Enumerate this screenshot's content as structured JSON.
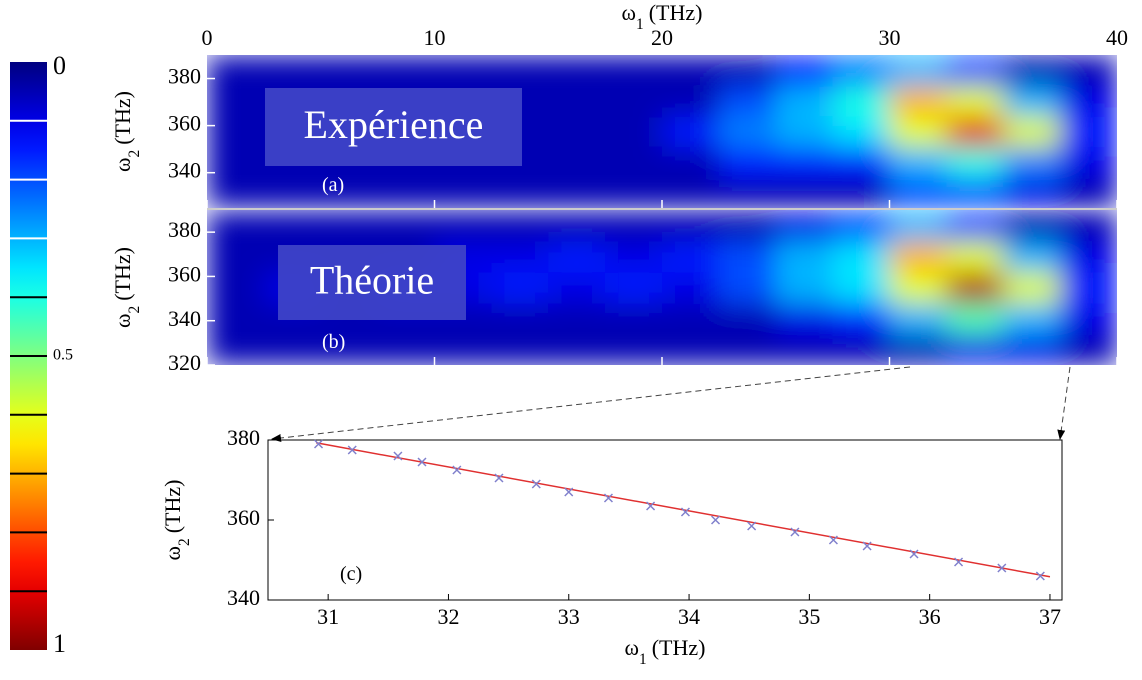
{
  "chart_data": [
    {
      "type": "colorbar",
      "colormap": "jet",
      "ylim": [
        0,
        1
      ],
      "yticks": [
        0,
        0.5,
        1
      ],
      "minor_ticks": [
        0.1,
        0.2,
        0.3,
        0.4,
        0.6,
        0.7,
        0.8,
        0.9
      ]
    },
    {
      "type": "heatmap",
      "colormap": "jet",
      "annotation": "Expérience",
      "panel_label": "(a)",
      "xlabel": {
        "symbol": "ω",
        "subscript": "1",
        "unit": "(THz)"
      },
      "ylabel": {
        "symbol": "ω",
        "subscript": "2",
        "unit": "(THz)"
      },
      "xlim": [
        0,
        40
      ],
      "xticks": [
        0,
        10,
        20,
        30,
        40
      ],
      "ylim": [
        325,
        390
      ],
      "yticks": [
        340,
        360,
        380
      ],
      "x_bins": [
        0,
        2.5,
        5,
        7.5,
        10,
        12.5,
        15,
        17.5,
        20,
        22.5,
        25,
        27.5,
        30,
        32.5,
        35,
        37.5,
        40
      ],
      "y_bins": [
        325,
        338,
        351,
        364,
        377,
        390
      ],
      "z": [
        [
          0.05,
          0.05,
          0.05,
          0.05,
          0.05,
          0.05,
          0.05,
          0.05,
          0.05,
          0.05,
          0.05,
          0.05,
          0.2,
          0.2,
          0.1,
          0.05
        ],
        [
          0.05,
          0.05,
          0.05,
          0.05,
          0.05,
          0.05,
          0.05,
          0.05,
          0.05,
          0.15,
          0.15,
          0.15,
          0.3,
          0.4,
          0.25,
          0.1
        ],
        [
          0.05,
          0.05,
          0.05,
          0.05,
          0.05,
          0.05,
          0.05,
          0.05,
          0.15,
          0.25,
          0.3,
          0.35,
          0.6,
          0.9,
          0.6,
          0.15
        ],
        [
          0.05,
          0.05,
          0.05,
          0.05,
          0.05,
          0.05,
          0.05,
          0.05,
          0.05,
          0.2,
          0.3,
          0.4,
          0.7,
          0.6,
          0.3,
          0.1
        ],
        [
          0.05,
          0.05,
          0.05,
          0.05,
          0.05,
          0.05,
          0.05,
          0.05,
          0.05,
          0.05,
          0.15,
          0.25,
          0.3,
          0.2,
          0.05,
          0.05
        ]
      ]
    },
    {
      "type": "heatmap",
      "colormap": "jet",
      "annotation": "Théorie",
      "panel_label": "(b)",
      "ylabel": {
        "symbol": "ω",
        "subscript": "2",
        "unit": "(THz)"
      },
      "xlim": [
        0,
        40
      ],
      "xticks": [
        0,
        10,
        20,
        30,
        40
      ],
      "ylim": [
        320,
        390
      ],
      "yticks": [
        320,
        340,
        360,
        380
      ],
      "x_bins": [
        0,
        2.5,
        5,
        7.5,
        10,
        12.5,
        15,
        17.5,
        20,
        22.5,
        25,
        27.5,
        30,
        32.5,
        35,
        37.5,
        40
      ],
      "y_bins": [
        320,
        334,
        348,
        362,
        376,
        390
      ],
      "z": [
        [
          0.05,
          0.05,
          0.05,
          0.05,
          0.05,
          0.05,
          0.05,
          0.05,
          0.05,
          0.05,
          0.05,
          0.05,
          0.05,
          0.1,
          0.1,
          0.05
        ],
        [
          0.05,
          0.05,
          0.05,
          0.05,
          0.05,
          0.05,
          0.05,
          0.05,
          0.05,
          0.05,
          0.1,
          0.15,
          0.3,
          0.45,
          0.3,
          0.1
        ],
        [
          0.05,
          0.1,
          0.05,
          0.1,
          0.1,
          0.15,
          0.1,
          0.15,
          0.1,
          0.2,
          0.3,
          0.35,
          0.6,
          0.95,
          0.6,
          0.15
        ],
        [
          0.05,
          0.05,
          0.05,
          0.05,
          0.1,
          0.1,
          0.15,
          0.1,
          0.15,
          0.2,
          0.3,
          0.35,
          0.7,
          0.6,
          0.3,
          0.1
        ],
        [
          0.05,
          0.05,
          0.05,
          0.05,
          0.05,
          0.05,
          0.05,
          0.05,
          0.05,
          0.05,
          0.1,
          0.2,
          0.3,
          0.2,
          0.05,
          0.05
        ]
      ]
    },
    {
      "type": "scatter",
      "panel_label": "(c)",
      "xlabel": {
        "symbol": "ω",
        "subscript": "1",
        "unit": "(THz)"
      },
      "ylabel": {
        "symbol": "ω",
        "subscript": "2",
        "unit": "(THz)"
      },
      "xlim": [
        30.5,
        37.1
      ],
      "xticks": [
        31,
        32,
        33,
        34,
        35,
        36,
        37
      ],
      "ylim": [
        340,
        380
      ],
      "yticks": [
        340,
        360,
        380
      ],
      "series": [
        {
          "style": "line",
          "color": "#e03030",
          "x": [
            30.9,
            37
          ],
          "values": [
            379.3,
            345.8
          ]
        },
        {
          "style": "markers",
          "color": "#8080cc",
          "x": [
            30.92,
            31.2,
            31.58,
            31.78,
            32.07,
            32.42,
            32.73,
            33.0,
            33.33,
            33.68,
            33.97,
            34.22,
            34.52,
            34.88,
            35.2,
            35.48,
            35.87,
            36.24,
            36.6,
            36.92
          ],
          "values": [
            379,
            377.5,
            376,
            374.5,
            372.5,
            370.5,
            369,
            367,
            365.5,
            363.5,
            362,
            360,
            358.5,
            357,
            355,
            353.5,
            351.5,
            349.5,
            348,
            346
          ]
        }
      ]
    }
  ]
}
